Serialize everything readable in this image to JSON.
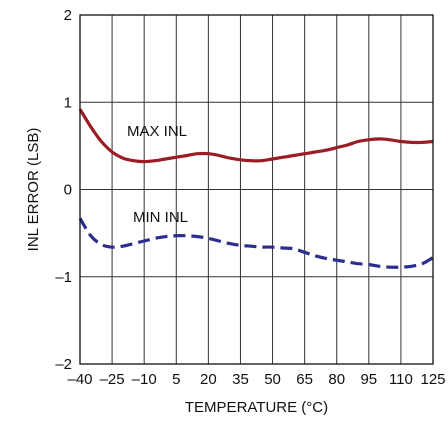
{
  "chart_data": {
    "type": "line",
    "xlabel": "TEMPERATURE (°C)",
    "ylabel": "INL ERROR (LSB)",
    "xlim": [
      -40,
      125
    ],
    "ylim": [
      -2,
      2
    ],
    "x_ticks": [
      -40,
      -25,
      -10,
      5,
      20,
      35,
      50,
      65,
      80,
      95,
      110,
      125
    ],
    "x_tick_labels": [
      "–40",
      "–25",
      "–10",
      "5",
      "20",
      "35",
      "50",
      "65",
      "80",
      "95",
      "110",
      "125"
    ],
    "y_ticks": [
      -2,
      -1,
      0,
      1,
      2
    ],
    "y_tick_labels": [
      "–2",
      "–1",
      "0",
      "1",
      "2"
    ],
    "grid": true,
    "series": [
      {
        "name": "MAX INL",
        "color": "#9b1c24",
        "dash": "solid",
        "x": [
          -40,
          -35,
          -30,
          -25,
          -20,
          -15,
          -10,
          -5,
          0,
          5,
          10,
          15,
          20,
          25,
          30,
          35,
          40,
          45,
          50,
          55,
          60,
          65,
          70,
          75,
          80,
          85,
          90,
          95,
          100,
          105,
          110,
          115,
          120,
          125
        ],
        "y": [
          0.92,
          0.72,
          0.55,
          0.43,
          0.36,
          0.33,
          0.32,
          0.33,
          0.35,
          0.37,
          0.39,
          0.41,
          0.41,
          0.39,
          0.36,
          0.34,
          0.33,
          0.33,
          0.35,
          0.37,
          0.39,
          0.41,
          0.43,
          0.45,
          0.48,
          0.51,
          0.55,
          0.57,
          0.58,
          0.57,
          0.55,
          0.54,
          0.54,
          0.55
        ]
      },
      {
        "name": "MIN INL",
        "color": "#2b2e8c",
        "dash": "dashed",
        "x": [
          -40,
          -35,
          -30,
          -25,
          -20,
          -15,
          -10,
          -5,
          0,
          5,
          10,
          15,
          20,
          25,
          30,
          35,
          40,
          45,
          50,
          55,
          60,
          65,
          70,
          75,
          80,
          85,
          90,
          95,
          100,
          105,
          110,
          115,
          120,
          125
        ],
        "y": [
          -0.33,
          -0.53,
          -0.63,
          -0.66,
          -0.65,
          -0.62,
          -0.59,
          -0.56,
          -0.54,
          -0.53,
          -0.53,
          -0.54,
          -0.56,
          -0.59,
          -0.62,
          -0.64,
          -0.65,
          -0.66,
          -0.66,
          -0.67,
          -0.68,
          -0.72,
          -0.76,
          -0.79,
          -0.81,
          -0.83,
          -0.85,
          -0.86,
          -0.88,
          -0.89,
          -0.89,
          -0.88,
          -0.85,
          -0.78
        ]
      }
    ]
  }
}
